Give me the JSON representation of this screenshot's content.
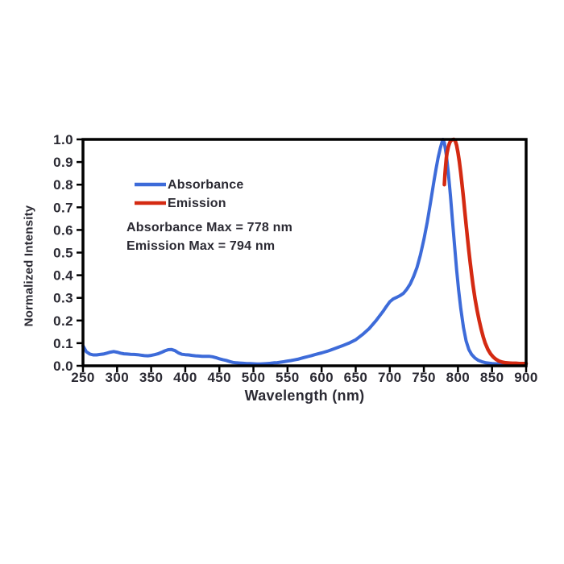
{
  "colors": {
    "background": "#ffffff",
    "axis": "#000000",
    "text": "#2b2a33"
  },
  "chart_data": {
    "type": "line",
    "title": "",
    "xlabel": "Wavelength (nm)",
    "ylabel": "Normalized Intensity",
    "xlim": [
      250,
      900
    ],
    "ylim": [
      0,
      1
    ],
    "grid": false,
    "x_ticks": [
      250,
      300,
      350,
      400,
      450,
      500,
      550,
      600,
      650,
      700,
      750,
      800,
      850,
      900
    ],
    "y_tick_labels": [
      "0.0",
      "0.1",
      "0.2",
      "0.3",
      "0.4",
      "0.5",
      "0.6",
      "0.7",
      "0.8",
      "0.9",
      "1.0"
    ],
    "legend": {
      "position": "inside-upper-left",
      "entries": [
        {
          "label": "Absorbance",
          "color": "#3d6bd9"
        },
        {
          "label": "Emission",
          "color": "#d42a12"
        }
      ]
    },
    "annotations": [
      {
        "text": "Absorbance Max = 778 nm"
      },
      {
        "text": "Emission Max = 794 nm"
      }
    ],
    "series": [
      {
        "name": "Absorbance",
        "color": "#3d6bd9",
        "points": [
          [
            250,
            0.088
          ],
          [
            255,
            0.062
          ],
          [
            260,
            0.052
          ],
          [
            265,
            0.048
          ],
          [
            270,
            0.048
          ],
          [
            275,
            0.05
          ],
          [
            280,
            0.052
          ],
          [
            285,
            0.056
          ],
          [
            290,
            0.06
          ],
          [
            295,
            0.063
          ],
          [
            300,
            0.06
          ],
          [
            305,
            0.056
          ],
          [
            310,
            0.053
          ],
          [
            315,
            0.052
          ],
          [
            320,
            0.051
          ],
          [
            325,
            0.05
          ],
          [
            330,
            0.049
          ],
          [
            335,
            0.047
          ],
          [
            340,
            0.045
          ],
          [
            345,
            0.044
          ],
          [
            350,
            0.046
          ],
          [
            355,
            0.049
          ],
          [
            360,
            0.053
          ],
          [
            365,
            0.059
          ],
          [
            370,
            0.066
          ],
          [
            375,
            0.071
          ],
          [
            380,
            0.072
          ],
          [
            385,
            0.067
          ],
          [
            390,
            0.057
          ],
          [
            395,
            0.051
          ],
          [
            400,
            0.049
          ],
          [
            405,
            0.048
          ],
          [
            410,
            0.046
          ],
          [
            415,
            0.044
          ],
          [
            420,
            0.043
          ],
          [
            425,
            0.042
          ],
          [
            430,
            0.042
          ],
          [
            435,
            0.042
          ],
          [
            440,
            0.04
          ],
          [
            445,
            0.036
          ],
          [
            450,
            0.031
          ],
          [
            455,
            0.027
          ],
          [
            460,
            0.024
          ],
          [
            465,
            0.019
          ],
          [
            470,
            0.015
          ],
          [
            475,
            0.013
          ],
          [
            480,
            0.012
          ],
          [
            485,
            0.011
          ],
          [
            490,
            0.01
          ],
          [
            495,
            0.01
          ],
          [
            500,
            0.009
          ],
          [
            505,
            0.008
          ],
          [
            510,
            0.008
          ],
          [
            515,
            0.009
          ],
          [
            520,
            0.01
          ],
          [
            525,
            0.011
          ],
          [
            530,
            0.013
          ],
          [
            535,
            0.014
          ],
          [
            540,
            0.016
          ],
          [
            545,
            0.018
          ],
          [
            550,
            0.021
          ],
          [
            555,
            0.023
          ],
          [
            560,
            0.026
          ],
          [
            565,
            0.029
          ],
          [
            570,
            0.033
          ],
          [
            575,
            0.037
          ],
          [
            580,
            0.041
          ],
          [
            585,
            0.045
          ],
          [
            590,
            0.049
          ],
          [
            595,
            0.053
          ],
          [
            600,
            0.057
          ],
          [
            610,
            0.066
          ],
          [
            620,
            0.077
          ],
          [
            630,
            0.088
          ],
          [
            640,
            0.1
          ],
          [
            650,
            0.115
          ],
          [
            660,
            0.138
          ],
          [
            670,
            0.165
          ],
          [
            680,
            0.2
          ],
          [
            690,
            0.24
          ],
          [
            695,
            0.262
          ],
          [
            700,
            0.283
          ],
          [
            705,
            0.295
          ],
          [
            710,
            0.302
          ],
          [
            715,
            0.31
          ],
          [
            720,
            0.32
          ],
          [
            725,
            0.338
          ],
          [
            730,
            0.362
          ],
          [
            735,
            0.395
          ],
          [
            740,
            0.435
          ],
          [
            745,
            0.49
          ],
          [
            750,
            0.558
          ],
          [
            755,
            0.635
          ],
          [
            760,
            0.725
          ],
          [
            765,
            0.82
          ],
          [
            768,
            0.872
          ],
          [
            771,
            0.92
          ],
          [
            774,
            0.96
          ],
          [
            776,
            0.982
          ],
          [
            778,
            1.0
          ],
          [
            780,
            0.985
          ],
          [
            783,
            0.93
          ],
          [
            786,
            0.85
          ],
          [
            789,
            0.75
          ],
          [
            792,
            0.64
          ],
          [
            795,
            0.53
          ],
          [
            798,
            0.425
          ],
          [
            801,
            0.335
          ],
          [
            804,
            0.255
          ],
          [
            808,
            0.17
          ],
          [
            812,
            0.11
          ],
          [
            816,
            0.072
          ],
          [
            820,
            0.05
          ],
          [
            825,
            0.034
          ],
          [
            830,
            0.024
          ],
          [
            835,
            0.018
          ],
          [
            840,
            0.014
          ],
          [
            850,
            0.01
          ],
          [
            860,
            0.008
          ],
          [
            870,
            0.007
          ],
          [
            880,
            0.006
          ],
          [
            890,
            0.006
          ],
          [
            900,
            0.006
          ]
        ]
      },
      {
        "name": "Emission",
        "color": "#d42a12",
        "points": [
          [
            780,
            0.8
          ],
          [
            781,
            0.848
          ],
          [
            782,
            0.888
          ],
          [
            783,
            0.918
          ],
          [
            784,
            0.94
          ],
          [
            786,
            0.968
          ],
          [
            788,
            0.986
          ],
          [
            790,
            0.996
          ],
          [
            792,
            0.999
          ],
          [
            794,
            1.0
          ],
          [
            796,
            0.994
          ],
          [
            798,
            0.974
          ],
          [
            800,
            0.942
          ],
          [
            802,
            0.902
          ],
          [
            804,
            0.854
          ],
          [
            806,
            0.8
          ],
          [
            808,
            0.743
          ],
          [
            810,
            0.684
          ],
          [
            812,
            0.624
          ],
          [
            814,
            0.565
          ],
          [
            816,
            0.508
          ],
          [
            818,
            0.455
          ],
          [
            820,
            0.405
          ],
          [
            822,
            0.358
          ],
          [
            825,
            0.298
          ],
          [
            828,
            0.246
          ],
          [
            831,
            0.202
          ],
          [
            834,
            0.162
          ],
          [
            837,
            0.128
          ],
          [
            840,
            0.1
          ],
          [
            844,
            0.072
          ],
          [
            848,
            0.052
          ],
          [
            852,
            0.038
          ],
          [
            856,
            0.028
          ],
          [
            860,
            0.021
          ],
          [
            865,
            0.016
          ],
          [
            870,
            0.013
          ],
          [
            875,
            0.012
          ],
          [
            880,
            0.011
          ],
          [
            885,
            0.011
          ],
          [
            890,
            0.01
          ],
          [
            895,
            0.01
          ],
          [
            900,
            0.01
          ]
        ]
      }
    ]
  }
}
